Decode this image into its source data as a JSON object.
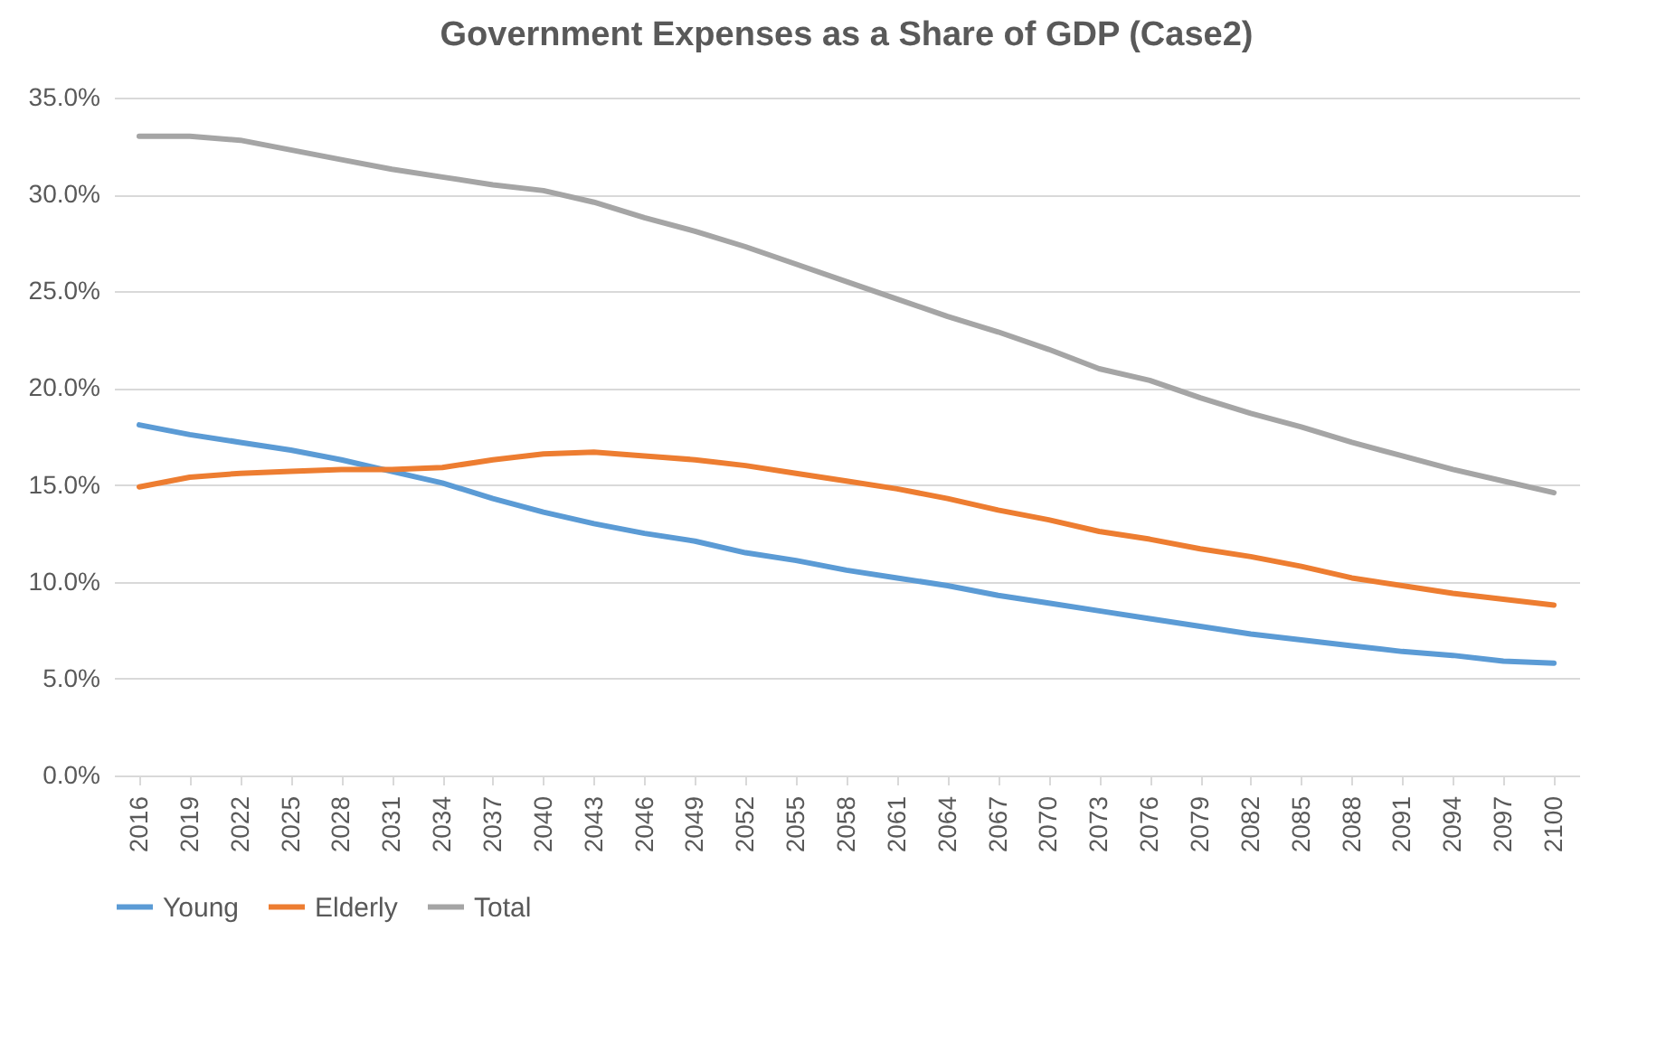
{
  "chart_data": {
    "type": "line",
    "title": "Government Expenses as a Share of GDP (Case2)",
    "categories": [
      "2016",
      "2019",
      "2022",
      "2025",
      "2028",
      "2031",
      "2034",
      "2037",
      "2040",
      "2043",
      "2046",
      "2049",
      "2052",
      "2055",
      "2058",
      "2061",
      "2064",
      "2067",
      "2070",
      "2073",
      "2076",
      "2079",
      "2082",
      "2085",
      "2088",
      "2091",
      "2094",
      "2097",
      "2100"
    ],
    "series": [
      {
        "name": "Young",
        "color": "#5b9bd5",
        "values": [
          18.1,
          17.6,
          17.2,
          16.8,
          16.3,
          15.7,
          15.1,
          14.3,
          13.6,
          13.0,
          12.5,
          12.1,
          11.5,
          11.1,
          10.6,
          10.2,
          9.8,
          9.3,
          8.9,
          8.5,
          8.1,
          7.7,
          7.3,
          7.0,
          6.7,
          6.4,
          6.2,
          5.9,
          5.8
        ]
      },
      {
        "name": "Elderly",
        "color": "#ed7d31",
        "values": [
          14.9,
          15.4,
          15.6,
          15.7,
          15.8,
          15.8,
          15.9,
          16.3,
          16.6,
          16.7,
          16.5,
          16.3,
          16.0,
          15.6,
          15.2,
          14.8,
          14.3,
          13.7,
          13.2,
          12.6,
          12.2,
          11.7,
          11.3,
          10.8,
          10.2,
          9.8,
          9.4,
          9.1,
          8.8
        ]
      },
      {
        "name": "Total",
        "color": "#a5a5a5",
        "values": [
          33.0,
          33.0,
          32.8,
          32.3,
          31.8,
          31.3,
          30.9,
          30.5,
          30.2,
          29.6,
          28.8,
          28.1,
          27.3,
          26.4,
          25.5,
          24.6,
          23.7,
          22.9,
          22.0,
          21.0,
          20.4,
          19.5,
          18.7,
          18.0,
          17.2,
          16.5,
          15.8,
          15.2,
          14.6
        ]
      }
    ],
    "ylim": [
      0,
      35
    ],
    "yticks": [
      {
        "value": 0,
        "label": "0.0%"
      },
      {
        "value": 5,
        "label": "5.0%"
      },
      {
        "value": 10,
        "label": "10.0%"
      },
      {
        "value": 15,
        "label": "15.0%"
      },
      {
        "value": 20,
        "label": "20.0%"
      },
      {
        "value": 25,
        "label": "25.0%"
      },
      {
        "value": 30,
        "label": "30.0%"
      },
      {
        "value": 35,
        "label": "35.0%"
      }
    ],
    "grid": "y",
    "legend": "bottom"
  }
}
